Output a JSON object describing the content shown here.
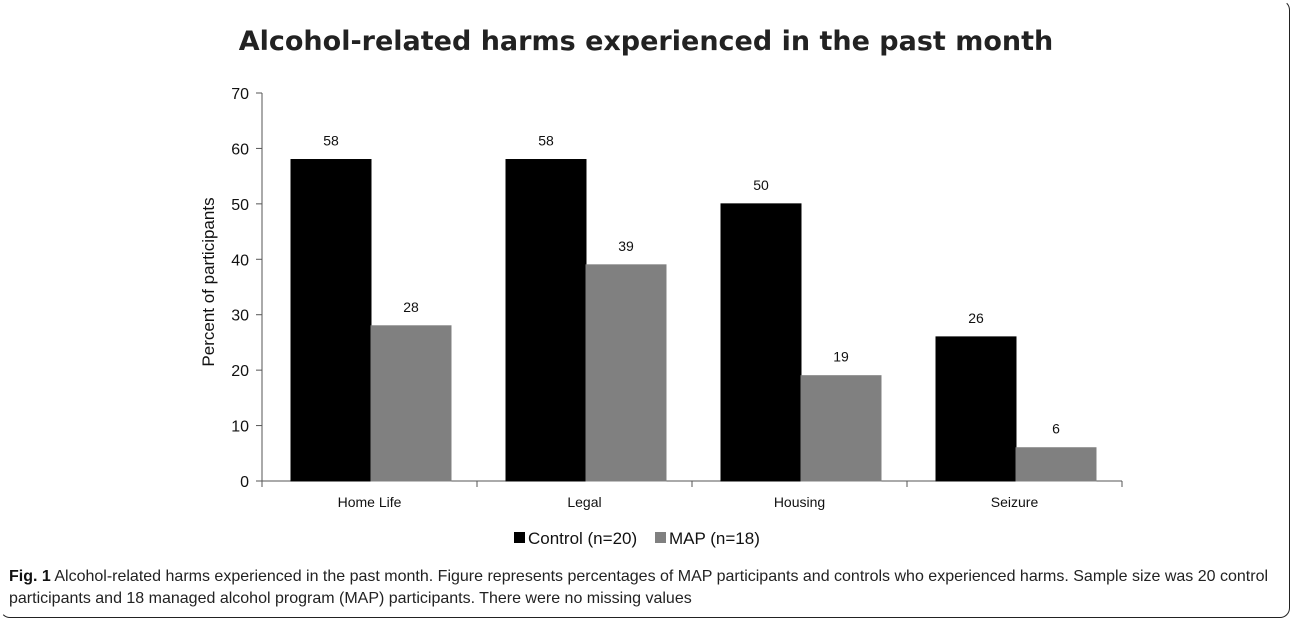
{
  "figure": {
    "caption_label": "Fig. 1",
    "caption_text": "Alcohol-related harms experienced in the past month. Figure represents percentages of MAP participants and controls who experienced harms. Sample size was 20 control participants and 18 managed alcohol program (MAP) participants. There were no missing values"
  },
  "chart_data": {
    "type": "bar",
    "title": "Alcohol-related harms experienced in the past month",
    "xlabel": "",
    "ylabel": "Percent of participants",
    "ylim": [
      0,
      70
    ],
    "yticks": [
      0,
      10,
      20,
      30,
      40,
      50,
      60,
      70
    ],
    "categories": [
      "Home Life",
      "Legal",
      "Housing",
      "Seizure"
    ],
    "series": [
      {
        "name": "Control (n=20)",
        "values": [
          58,
          58,
          50,
          26
        ],
        "color": "#000000"
      },
      {
        "name": "MAP (n=18)",
        "values": [
          28,
          39,
          19,
          6
        ],
        "color": "#808080"
      }
    ],
    "data_labels": true,
    "grid": false,
    "legend": "bottom"
  }
}
